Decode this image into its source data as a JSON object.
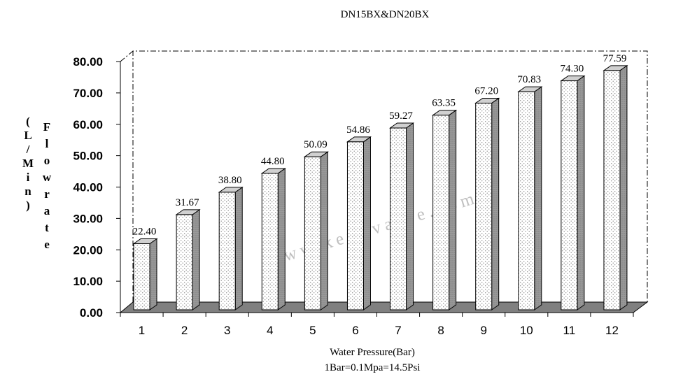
{
  "chart_data": {
    "type": "bar",
    "title": "DN15BX&DN20BX",
    "xlabel": "Water Pressure(Bar)",
    "xlabel_note": "1Bar=0.1Mpa=14.5Psi",
    "ylabel_vertical": {
      "unit_column": [
        "(",
        "L",
        "/",
        "M",
        "i",
        "n",
        ")"
      ],
      "name_column": [
        "F",
        "l",
        "o",
        "w",
        "r",
        "a",
        "t",
        "e"
      ]
    },
    "categories": [
      "1",
      "2",
      "3",
      "4",
      "5",
      "6",
      "7",
      "8",
      "9",
      "10",
      "11",
      "12"
    ],
    "values": [
      22.4,
      31.67,
      38.8,
      44.8,
      50.09,
      54.86,
      59.27,
      63.35,
      67.2,
      70.83,
      74.3,
      77.59
    ],
    "value_labels": [
      "22.40",
      "31.67",
      "38.80",
      "44.80",
      "50.09",
      "54.86",
      "59.27",
      "63.35",
      "67.20",
      "70.83",
      "74.30",
      "77.59"
    ],
    "y_ticks": [
      "0.00",
      "10.00",
      "20.00",
      "30.00",
      "40.00",
      "50.00",
      "60.00",
      "70.00",
      "80.00"
    ],
    "ylim": [
      0,
      80
    ],
    "grid": false,
    "style": "3d-column",
    "watermark": "www.keyuvalve.com",
    "colors": {
      "bar_front": "#ffffff",
      "bar_dots": "#888888",
      "bar_side": "#9a9a9a",
      "bar_top": "#d0d0d0",
      "floor": "#808080",
      "watermark": "#c0c0c0"
    }
  }
}
